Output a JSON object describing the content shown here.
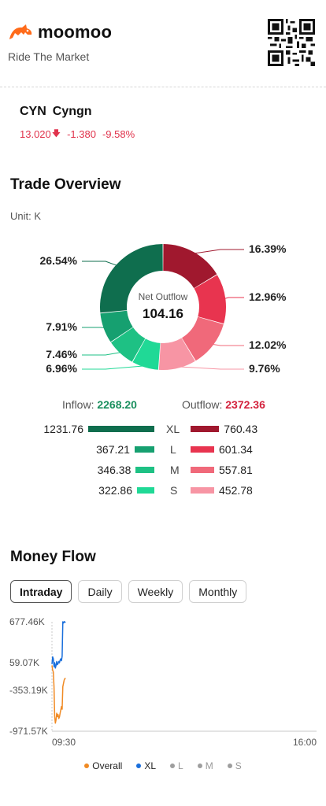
{
  "brand": {
    "name": "moomoo",
    "tagline": "Ride The Market"
  },
  "stock": {
    "ticker": "CYN",
    "name": "Cyngn",
    "price": "13.020",
    "change": "-1.380",
    "change_pct": "-9.58%"
  },
  "trade_overview": {
    "title": "Trade Overview",
    "unit": "Unit: K",
    "center_label": "Net Outflow",
    "center_value": "104.16",
    "inflow_label": "Inflow:",
    "inflow_value": "2268.20",
    "outflow_label": "Outflow:",
    "outflow_value": "2372.36",
    "colors": {
      "in_xl": "#0f6e4e",
      "in_l": "#16a070",
      "in_m": "#1ec184",
      "in_s": "#20d996",
      "out_xl": "#a0182e",
      "out_l": "#e8344f",
      "out_m": "#f0697a",
      "out_s": "#f795a4"
    },
    "slices": [
      {
        "key": "out_xl",
        "pct_value": 16.39,
        "label": "16.39%"
      },
      {
        "key": "out_l",
        "pct_value": 12.96,
        "label": "12.96%"
      },
      {
        "key": "out_m",
        "pct_value": 12.02,
        "label": "12.02%"
      },
      {
        "key": "out_s",
        "pct_value": 9.76,
        "label": "9.76%"
      },
      {
        "key": "in_s",
        "pct_value": 6.96,
        "label": "6.96%"
      },
      {
        "key": "in_m",
        "pct_value": 7.46,
        "label": "7.46%"
      },
      {
        "key": "in_l",
        "pct_value": 7.91,
        "label": "7.91%"
      },
      {
        "key": "in_xl",
        "pct_value": 26.54,
        "label": "26.54%"
      }
    ],
    "rows": [
      {
        "cat": "XL",
        "inflow": "1231.76",
        "outflow": "760.43",
        "in_key": "in_xl",
        "out_key": "out_xl"
      },
      {
        "cat": "L",
        "inflow": "367.21",
        "outflow": "601.34",
        "in_key": "in_l",
        "out_key": "out_l"
      },
      {
        "cat": "M",
        "inflow": "346.38",
        "outflow": "557.81",
        "in_key": "in_m",
        "out_key": "out_m"
      },
      {
        "cat": "S",
        "inflow": "322.86",
        "outflow": "452.78",
        "in_key": "in_s",
        "out_key": "out_s"
      }
    ]
  },
  "money_flow": {
    "title": "Money Flow",
    "tabs": [
      "Intraday",
      "Daily",
      "Weekly",
      "Monthly"
    ],
    "active_tab": "Intraday",
    "legend": [
      {
        "label": "Overall",
        "color": "#f08a24",
        "muted": false
      },
      {
        "label": "XL",
        "color": "#1a6fdc",
        "muted": false
      },
      {
        "label": "L",
        "color": "#9e9e9e",
        "muted": true
      },
      {
        "label": "M",
        "color": "#9e9e9e",
        "muted": true
      },
      {
        "label": "S",
        "color": "#9e9e9e",
        "muted": true
      }
    ]
  },
  "chart_data": {
    "type": "line",
    "y_ticks": [
      "677.46K",
      "59.07K",
      "-353.19K",
      "-971.57K"
    ],
    "y_tick_values": [
      677.46,
      59.07,
      -353.19,
      -971.57
    ],
    "ylim": [
      -971.57,
      677.46
    ],
    "x_tick_labels": [
      "09:30",
      "16:00"
    ],
    "x_range_minutes": [
      0,
      390
    ],
    "series": [
      {
        "name": "XL",
        "color": "#1a6fdc",
        "x": [
          0,
          1,
          2,
          3,
          4,
          5,
          6,
          7,
          8,
          9,
          10,
          11,
          12,
          13,
          14,
          15,
          16,
          17,
          18,
          19,
          20
        ],
        "y": [
          40,
          150,
          120,
          0,
          60,
          -20,
          20,
          80,
          30,
          50,
          80,
          60,
          100,
          120,
          90,
          160,
          677,
          660,
          680,
          670,
          677
        ]
      },
      {
        "name": "Overall",
        "color": "#f08a24",
        "x": [
          0,
          1,
          2,
          3,
          4,
          5,
          6,
          7,
          8,
          9,
          10,
          11,
          12,
          13,
          14,
          15,
          16,
          17,
          18,
          19,
          20
        ],
        "y": [
          20,
          -50,
          -80,
          -300,
          -750,
          -850,
          -800,
          -700,
          -750,
          -720,
          -780,
          -760,
          -700,
          -650,
          -600,
          -640,
          -300,
          -250,
          -200,
          -180,
          -170
        ]
      }
    ]
  }
}
